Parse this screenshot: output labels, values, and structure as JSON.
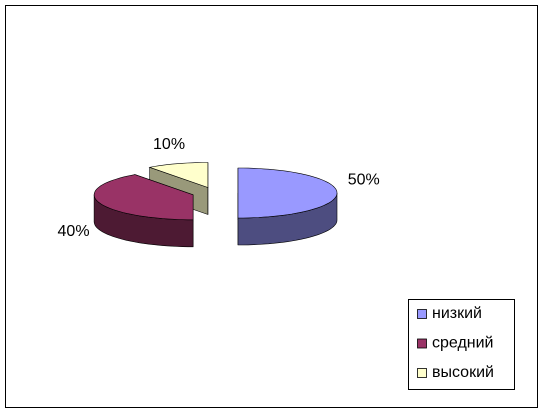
{
  "chart_data": {
    "type": "pie",
    "categories": [
      "низкий",
      "средний",
      "высокий"
    ],
    "values": [
      50,
      40,
      10
    ],
    "value_labels": [
      "50%",
      "40%",
      "10%"
    ],
    "colors": [
      "#9999ff",
      "#993366",
      "#ffffcc"
    ],
    "legend": "bottom-right"
  }
}
